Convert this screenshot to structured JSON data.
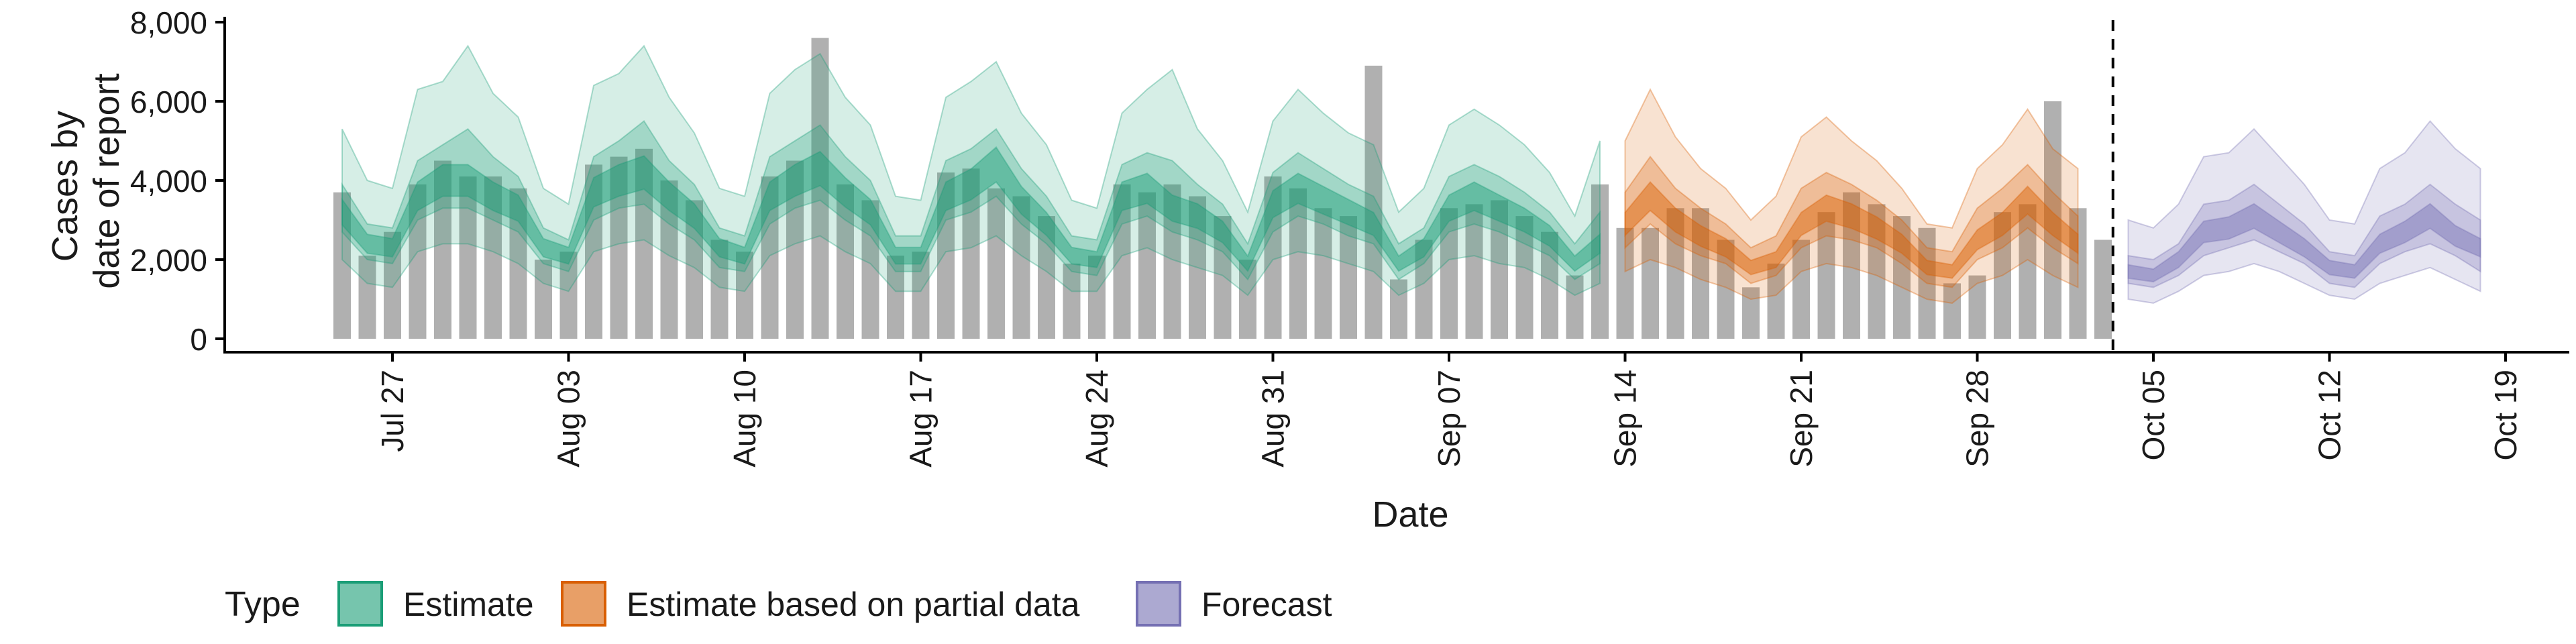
{
  "chart_data": {
    "type": "bar",
    "title": "",
    "xlabel": "Date",
    "ylabel": [
      "Cases by",
      "date of report"
    ],
    "ylim": [
      0,
      8000
    ],
    "yticks": [
      0,
      2000,
      4000,
      6000,
      8000
    ],
    "ytick_labels": [
      "0",
      "2,000",
      "4,000",
      "6,000",
      "8,000"
    ],
    "start_date": "2020-07-25",
    "xtick_labels": [
      "Jul 27",
      "Aug 03",
      "Aug 10",
      "Aug 17",
      "Aug 24",
      "Aug 31",
      "Sep 07",
      "Sep 14",
      "Sep 21",
      "Sep 28",
      "Oct 05",
      "Oct 12",
      "Oct 19"
    ],
    "reported_cases": [
      3700,
      2100,
      2700,
      3900,
      4500,
      4100,
      4100,
      3800,
      2000,
      2200,
      4400,
      4600,
      4800,
      4000,
      3500,
      2500,
      2200,
      4100,
      4500,
      7600,
      3900,
      3500,
      2100,
      2200,
      4200,
      4300,
      3800,
      3600,
      3100,
      1900,
      2100,
      3900,
      3700,
      3900,
      3600,
      3100,
      2000,
      4100,
      3800,
      3300,
      3100,
      6900,
      1500,
      2500,
      3300,
      3400,
      3500,
      3100,
      2700,
      1600,
      3900,
      2800,
      2800,
      3300,
      3300,
      2500,
      1300,
      1900,
      2500,
      3200,
      3700,
      3400,
      3100,
      2800,
      1400,
      1600,
      3200,
      3400,
      6000,
      3300,
      2500
    ],
    "estimate": {
      "start_index": 0,
      "median": [
        3200,
        2400,
        2300,
        3600,
        4000,
        4000,
        3600,
        3300,
        2300,
        2100,
        3700,
        4000,
        4200,
        3600,
        3100,
        2300,
        2100,
        3600,
        4000,
        4300,
        3700,
        3200,
        2100,
        2100,
        3600,
        3900,
        4400,
        3500,
        2900,
        2100,
        2000,
        3600,
        3800,
        3300,
        3100,
        2700,
        1900,
        3400,
        3800,
        3500,
        3200,
        2900,
        1900,
        2300,
        3300,
        3600,
        3300,
        3000,
        2600,
        1900,
        2400
      ],
      "ci90_lo": [
        2000,
        1400,
        1300,
        2200,
        2400,
        2400,
        2200,
        1900,
        1400,
        1200,
        2200,
        2400,
        2500,
        2100,
        1800,
        1300,
        1200,
        2100,
        2400,
        2600,
        2200,
        1900,
        1200,
        1200,
        2200,
        2300,
        2600,
        2100,
        1700,
        1200,
        1200,
        2100,
        2300,
        2000,
        1800,
        1600,
        1100,
        2000,
        2200,
        2100,
        1900,
        1700,
        1100,
        1400,
        2000,
        2100,
        1900,
        1800,
        1500,
        1100,
        1400
      ],
      "ci90_hi": [
        5300,
        4000,
        3800,
        6300,
        6500,
        7400,
        6200,
        5600,
        3800,
        3400,
        6400,
        6700,
        7400,
        6100,
        5200,
        3800,
        3600,
        6200,
        6800,
        7200,
        6100,
        5400,
        3600,
        3500,
        6100,
        6500,
        7000,
        5700,
        4900,
        3500,
        3300,
        5700,
        6300,
        6800,
        5300,
        4500,
        3200,
        5500,
        6300,
        5700,
        5200,
        4900,
        3200,
        3800,
        5400,
        5800,
        5400,
        4900,
        4200,
        3100,
        5000
      ],
      "ci50_lo": [
        2700,
        2000,
        1900,
        3000,
        3300,
        3300,
        3000,
        2700,
        1900,
        1700,
        3000,
        3300,
        3400,
        2900,
        2500,
        1800,
        1700,
        2900,
        3300,
        3500,
        3000,
        2600,
        1700,
        1700,
        3000,
        3200,
        3600,
        2900,
        2400,
        1700,
        1600,
        2900,
        3100,
        2700,
        2500,
        2200,
        1500,
        2700,
        3100,
        2900,
        2600,
        2400,
        1500,
        1900,
        2700,
        2900,
        2700,
        2400,
        2100,
        1500,
        1900
      ],
      "ci50_hi": [
        3900,
        2900,
        2800,
        4500,
        4900,
        5300,
        4600,
        4100,
        2800,
        2500,
        4600,
        5000,
        5500,
        4500,
        3900,
        2800,
        2600,
        4600,
        5000,
        5400,
        4600,
        4000,
        2600,
        2600,
        4500,
        4800,
        5300,
        4300,
        3600,
        2600,
        2500,
        4400,
        4700,
        4500,
        3900,
        3400,
        2400,
        4200,
        4700,
        4300,
        3900,
        3600,
        2400,
        2800,
        4100,
        4400,
        4100,
        3700,
        3200,
        2400,
        3200
      ]
    },
    "estimate_partial": {
      "start_index": 51,
      "median": [
        2900,
        3600,
        3000,
        2600,
        2300,
        1800,
        2000,
        2900,
        3300,
        3100,
        2800,
        2400,
        1800,
        1700,
        2500,
        2900,
        3500,
        2900,
        2400
      ],
      "ci90_lo": [
        1700,
        2000,
        1800,
        1500,
        1300,
        1000,
        1100,
        1700,
        1900,
        1800,
        1600,
        1300,
        1000,
        900,
        1400,
        1600,
        2000,
        1600,
        1300
      ],
      "ci90_hi": [
        5000,
        6300,
        5100,
        4300,
        3800,
        3000,
        3600,
        5100,
        5600,
        5000,
        4500,
        3800,
        2900,
        2800,
        4300,
        4900,
        5800,
        4800,
        4300
      ],
      "ci50_lo": [
        2300,
        2900,
        2400,
        2100,
        1900,
        1400,
        1600,
        2300,
        2600,
        2500,
        2300,
        1900,
        1400,
        1300,
        2000,
        2300,
        2800,
        2300,
        1900
      ],
      "ci50_hi": [
        3700,
        4600,
        3800,
        3300,
        2900,
        2300,
        2600,
        3800,
        4200,
        3900,
        3500,
        3000,
        2300,
        2200,
        3300,
        3800,
        4400,
        3700,
        3100
      ]
    },
    "forecast": {
      "start_index": 71,
      "median": [
        1700,
        1600,
        2000,
        2700,
        2800,
        3100,
        2700,
        2300,
        1800,
        1700,
        2400,
        2700,
        3100,
        2600,
        2300
      ],
      "ci90_lo": [
        1000,
        900,
        1200,
        1600,
        1700,
        1900,
        1700,
        1400,
        1100,
        1000,
        1400,
        1600,
        1800,
        1500,
        1200
      ],
      "ci90_hi": [
        3000,
        2800,
        3400,
        4600,
        4700,
        5300,
        4600,
        3900,
        3000,
        2900,
        4300,
        4700,
        5500,
        4800,
        4300
      ],
      "ci50_lo": [
        1400,
        1300,
        1600,
        2100,
        2300,
        2500,
        2200,
        1900,
        1400,
        1300,
        1900,
        2200,
        2400,
        2100,
        1700
      ],
      "ci50_hi": [
        2100,
        2000,
        2400,
        3400,
        3500,
        3900,
        3400,
        2900,
        2200,
        2100,
        3100,
        3400,
        3900,
        3400,
        3000
      ]
    },
    "vline_after_index": 70,
    "legend": {
      "title": "Type",
      "placement": "bottom-left",
      "entries": [
        {
          "label": "Estimate",
          "fill": "#1b9e77",
          "stroke": "#1b9e77"
        },
        {
          "label": "Estimate based on partial data",
          "fill": "#d95f02",
          "stroke": "#d95f02"
        },
        {
          "label": "Forecast",
          "fill": "#7570b3",
          "stroke": "#7570b3"
        }
      ]
    },
    "colors": {
      "bars": "#b0b0b0",
      "estimate": "#1b9e77",
      "estimate_partial": "#d95f02",
      "forecast": "#7570b3",
      "axis": "#000000"
    }
  }
}
